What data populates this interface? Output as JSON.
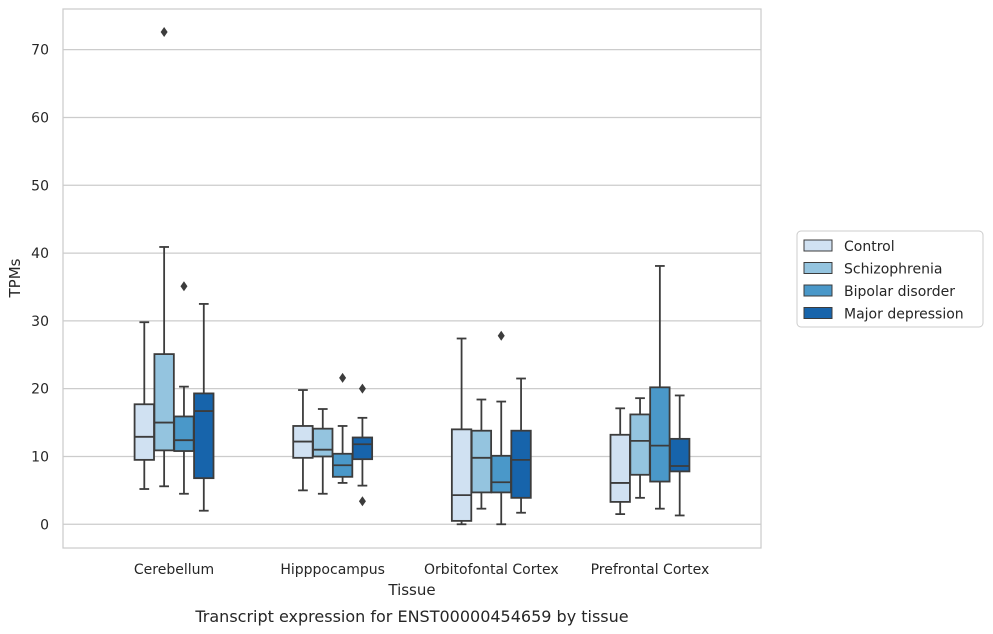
{
  "chart_data": {
    "type": "box",
    "title": "",
    "caption": "Transcript expression for ENST00000454659 by tissue",
    "xlabel": "Tissue",
    "ylabel": "TPMs",
    "ylim": [
      -3.5,
      76
    ],
    "yticks": [
      0,
      10,
      20,
      30,
      40,
      50,
      60,
      70
    ],
    "grid": "horizontal",
    "legend_position": "right",
    "categories": [
      "Cerebellum",
      "Hipppocampus",
      "Orbitofontal Cortex",
      "Prefrontal Cortex"
    ],
    "series": [
      {
        "name": "Control",
        "color": "#d0e1f2",
        "boxes": [
          {
            "min": 5.2,
            "q1": 9.5,
            "median": 12.9,
            "q3": 17.7,
            "max": 29.8,
            "outliers": []
          },
          {
            "min": 5.0,
            "q1": 9.8,
            "median": 12.2,
            "q3": 14.5,
            "max": 19.8,
            "outliers": []
          },
          {
            "min": 0.0,
            "q1": 0.5,
            "median": 4.3,
            "q3": 14.0,
            "max": 27.4,
            "outliers": []
          },
          {
            "min": 1.5,
            "q1": 3.3,
            "median": 6.1,
            "q3": 13.2,
            "max": 17.1,
            "outliers": []
          }
        ]
      },
      {
        "name": "Schizophrenia",
        "color": "#94c4df",
        "boxes": [
          {
            "min": 5.6,
            "q1": 10.9,
            "median": 15.0,
            "q3": 25.1,
            "max": 40.9,
            "outliers": [
              72.6
            ]
          },
          {
            "min": 4.5,
            "q1": 10.0,
            "median": 11.0,
            "q3": 14.1,
            "max": 17.0,
            "outliers": []
          },
          {
            "min": 2.3,
            "q1": 4.7,
            "median": 9.8,
            "q3": 13.8,
            "max": 18.4,
            "outliers": []
          },
          {
            "min": 3.9,
            "q1": 7.3,
            "median": 12.3,
            "q3": 16.2,
            "max": 18.6,
            "outliers": []
          }
        ]
      },
      {
        "name": "Bipolar disorder",
        "color": "#4a98c9",
        "boxes": [
          {
            "min": 4.5,
            "q1": 10.8,
            "median": 12.4,
            "q3": 15.9,
            "max": 20.3,
            "outliers": [
              35.1
            ]
          },
          {
            "min": 6.1,
            "q1": 7.0,
            "median": 8.7,
            "q3": 10.4,
            "max": 14.5,
            "outliers": [
              21.6
            ]
          },
          {
            "min": 0.0,
            "q1": 4.7,
            "median": 6.2,
            "q3": 10.1,
            "max": 18.1,
            "outliers": [
              27.8
            ]
          },
          {
            "min": 2.3,
            "q1": 6.3,
            "median": 11.6,
            "q3": 20.2,
            "max": 38.1,
            "outliers": []
          }
        ]
      },
      {
        "name": "Major depression",
        "color": "#1764ab",
        "boxes": [
          {
            "min": 2.0,
            "q1": 6.8,
            "median": 16.7,
            "q3": 19.3,
            "max": 32.5,
            "outliers": []
          },
          {
            "min": 5.7,
            "q1": 9.6,
            "median": 11.8,
            "q3": 12.8,
            "max": 15.7,
            "outliers": [
              3.4,
              20.0
            ]
          },
          {
            "min": 1.7,
            "q1": 3.9,
            "median": 9.5,
            "q3": 13.8,
            "max": 21.5,
            "outliers": []
          },
          {
            "min": 1.3,
            "q1": 7.8,
            "median": 8.6,
            "q3": 12.6,
            "max": 19.0,
            "outliers": []
          }
        ]
      }
    ]
  }
}
